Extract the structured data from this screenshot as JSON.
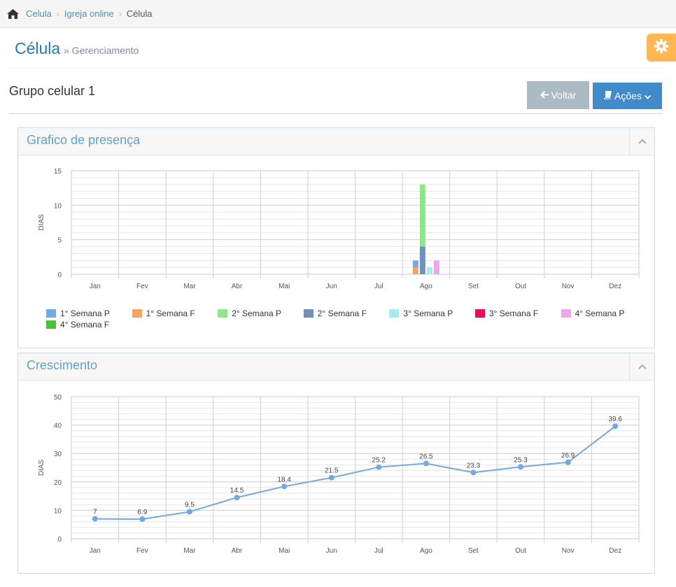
{
  "breadcrumb": {
    "items": [
      "Celula",
      "Igreja online",
      "Célula"
    ]
  },
  "header": {
    "title": "Célula",
    "subtitle": "» Gerenciamento"
  },
  "group": {
    "title": "Grupo celular 1"
  },
  "buttons": {
    "voltar": "Voltar",
    "acoes": "Ações"
  },
  "icons": {
    "home": "home-icon",
    "settings": "gear-icon",
    "back": "arrow-left-icon",
    "book": "book-icon",
    "caret": "chevron-down-icon",
    "collapse": "chevron-up-icon"
  },
  "colors": {
    "accent": "#428bca",
    "settings": "#ffb752",
    "voltar": "#abbac3",
    "widget_title": "#669fc7"
  },
  "presence_widget": {
    "title": "Grafico de presença"
  },
  "growth_widget": {
    "title": "Crescimento"
  },
  "chart_data": [
    {
      "type": "bar",
      "title": "Grafico de presença",
      "ylabel": "DIAS",
      "xlabel": "",
      "ylim": [
        0,
        15
      ],
      "yticks": [
        0,
        5,
        10,
        15
      ],
      "grid": true,
      "legend_position": "bottom",
      "categories": [
        "Jan",
        "Fev",
        "Mar",
        "Abr",
        "Mai",
        "Jun",
        "Jul",
        "Ago",
        "Set",
        "Out",
        "Nov",
        "Dez"
      ],
      "series": [
        {
          "name": "1° Semana P",
          "color": "#73a9e0",
          "stack": "1",
          "values": [
            0,
            0,
            0,
            0,
            0,
            0,
            0,
            1,
            0,
            0,
            0,
            0
          ]
        },
        {
          "name": "1° Semana F",
          "color": "#f4a460",
          "stack": "1",
          "values": [
            0,
            0,
            0,
            0,
            0,
            0,
            0,
            1,
            0,
            0,
            0,
            0
          ]
        },
        {
          "name": "2° Semana P",
          "color": "#8be88a",
          "stack": "2",
          "values": [
            0,
            0,
            0,
            0,
            0,
            0,
            0,
            9,
            0,
            0,
            0,
            0
          ]
        },
        {
          "name": "2° Semana F",
          "color": "#7290bd",
          "stack": "2",
          "values": [
            0,
            0,
            0,
            0,
            0,
            0,
            0,
            4,
            0,
            0,
            0,
            0
          ]
        },
        {
          "name": "3° Semana P",
          "color": "#a6ecea",
          "stack": "3",
          "values": [
            0,
            0,
            0,
            0,
            0,
            0,
            0,
            1,
            0,
            0,
            0,
            0
          ]
        },
        {
          "name": "3° Semana F",
          "color": "#ee0b55",
          "stack": "3",
          "values": [
            0,
            0,
            0,
            0,
            0,
            0,
            0,
            0,
            0,
            0,
            0,
            0
          ]
        },
        {
          "name": "4° Semana P",
          "color": "#eea5ea",
          "stack": "4",
          "values": [
            0,
            0,
            0,
            0,
            0,
            0,
            0,
            2,
            0,
            0,
            0,
            0
          ]
        },
        {
          "name": "4° Semana F",
          "color": "#4fbe3a",
          "stack": "4",
          "values": [
            0,
            0,
            0,
            0,
            0,
            0,
            0,
            0,
            0,
            0,
            0,
            0
          ]
        }
      ]
    },
    {
      "type": "line",
      "title": "Crescimento",
      "ylabel": "DIAS",
      "xlabel": "",
      "ylim": [
        0,
        50
      ],
      "yticks": [
        0,
        10,
        20,
        30,
        40,
        50
      ],
      "grid": true,
      "categories": [
        "Jan",
        "Fev",
        "Mar",
        "Abr",
        "Mai",
        "Jun",
        "Jul",
        "Ago",
        "Set",
        "Out",
        "Nov",
        "Dez"
      ],
      "series": [
        {
          "color": "#73a9e0",
          "values": [
            7,
            6.9,
            9.5,
            14.5,
            18.4,
            21.5,
            25.2,
            26.5,
            23.3,
            25.3,
            26.9,
            39.6
          ]
        }
      ]
    }
  ]
}
